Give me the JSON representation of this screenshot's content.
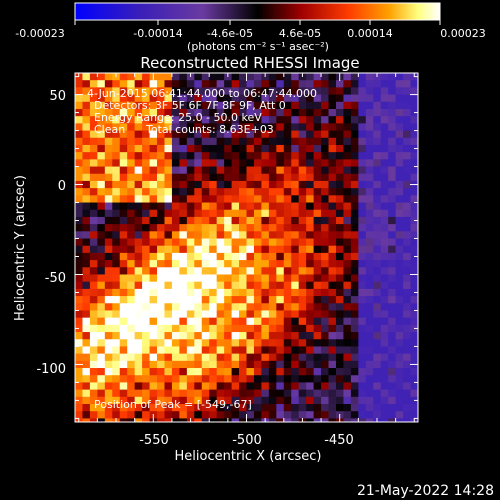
{
  "colorbar": {
    "ticks": [
      "-0.00023",
      "-0.00014",
      "-4.6e-05",
      "4.6e-05",
      "0.00014",
      "0.00023"
    ],
    "units": "(photons cm⁻² s⁻¹ asec⁻²)",
    "colors": [
      "#0000ff",
      "#3a1fb8",
      "#6a3aa0",
      "#000000",
      "#a00000",
      "#ff3c00",
      "#ffa000",
      "#ffff80",
      "#ffffff"
    ],
    "range": [
      -0.00023,
      0.00023
    ]
  },
  "chart_data": {
    "type": "heatmap",
    "title": "Reconstructed RHESSI Image",
    "xlabel": "Heliocentric X (arcsec)",
    "ylabel": "Heliocentric Y (arcsec)",
    "xlim": [
      -592,
      -408
    ],
    "ylim": [
      -132,
      62
    ],
    "x_ticks": [
      -550,
      -500,
      -450
    ],
    "y_ticks": [
      50,
      0,
      -50,
      -100
    ],
    "peak": [
      -549,
      -67
    ],
    "annotations": {
      "time_range": "4-Jun-2015 06:41:44.000 to 06:47:44.000",
      "detectors": "Detectors: 3F 5F 6F 7F 8F 9F, Att 0",
      "energy": "Energy Range: 25.0 - 50.0 keV",
      "method": "Clean",
      "counts": "Total counts: 8.63E+03",
      "peak_text": "Position of Peak = [-549,-67]"
    }
  },
  "footer": {
    "date": "21-May-2022 14:28"
  }
}
